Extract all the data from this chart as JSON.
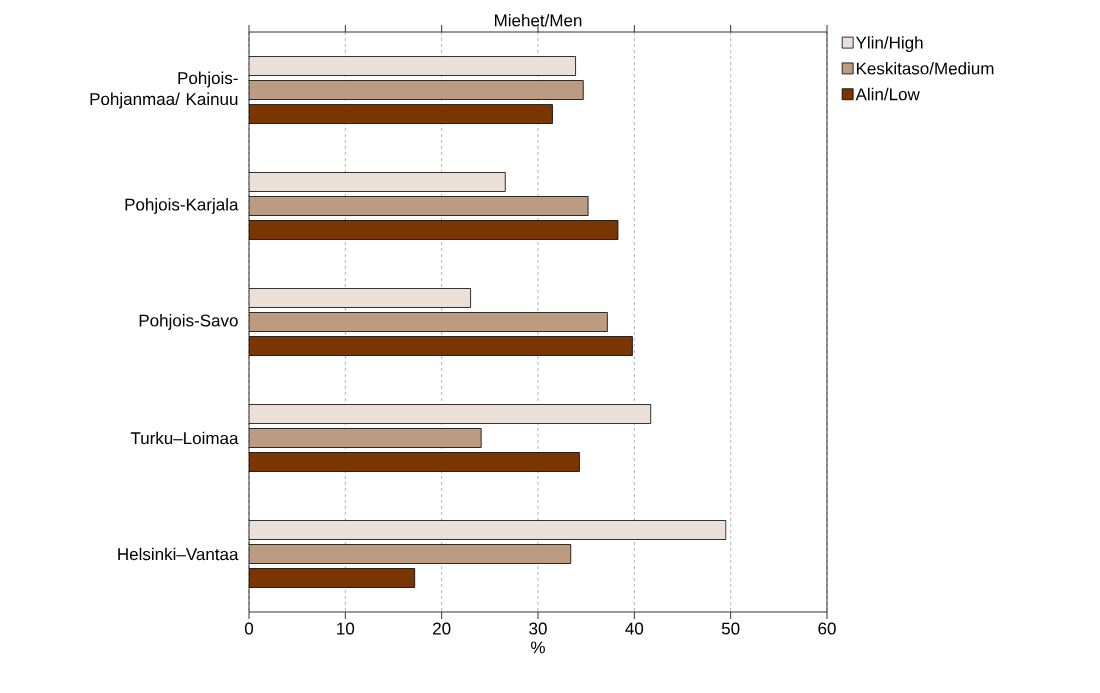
{
  "chart_data": {
    "type": "bar",
    "orientation": "horizontal",
    "title": "Miehet/Men",
    "xlabel": "%",
    "categories": [
      "Pohjois-Pohjanmaa/ Kainuu",
      "Pohjois-Karjala",
      "Pohjois-Savo",
      "Turku–Loimaa",
      "Helsinki–Vantaa"
    ],
    "series": [
      {
        "name": "Ylin/High",
        "color": "#ebe0d8",
        "values": [
          33.9,
          26.6,
          23.0,
          41.7,
          49.5
        ]
      },
      {
        "name": "Keskitaso/Medium",
        "color": "#bd9b80",
        "values": [
          34.7,
          35.2,
          37.2,
          24.1,
          33.4
        ]
      },
      {
        "name": "Alin/Low",
        "color": "#7a3500",
        "values": [
          31.5,
          38.3,
          39.8,
          34.3,
          17.2
        ]
      }
    ],
    "xlim": [
      0,
      60
    ],
    "xticks": [
      0,
      10,
      20,
      30,
      40,
      50,
      60
    ],
    "grid": "x",
    "legend": "top right"
  }
}
